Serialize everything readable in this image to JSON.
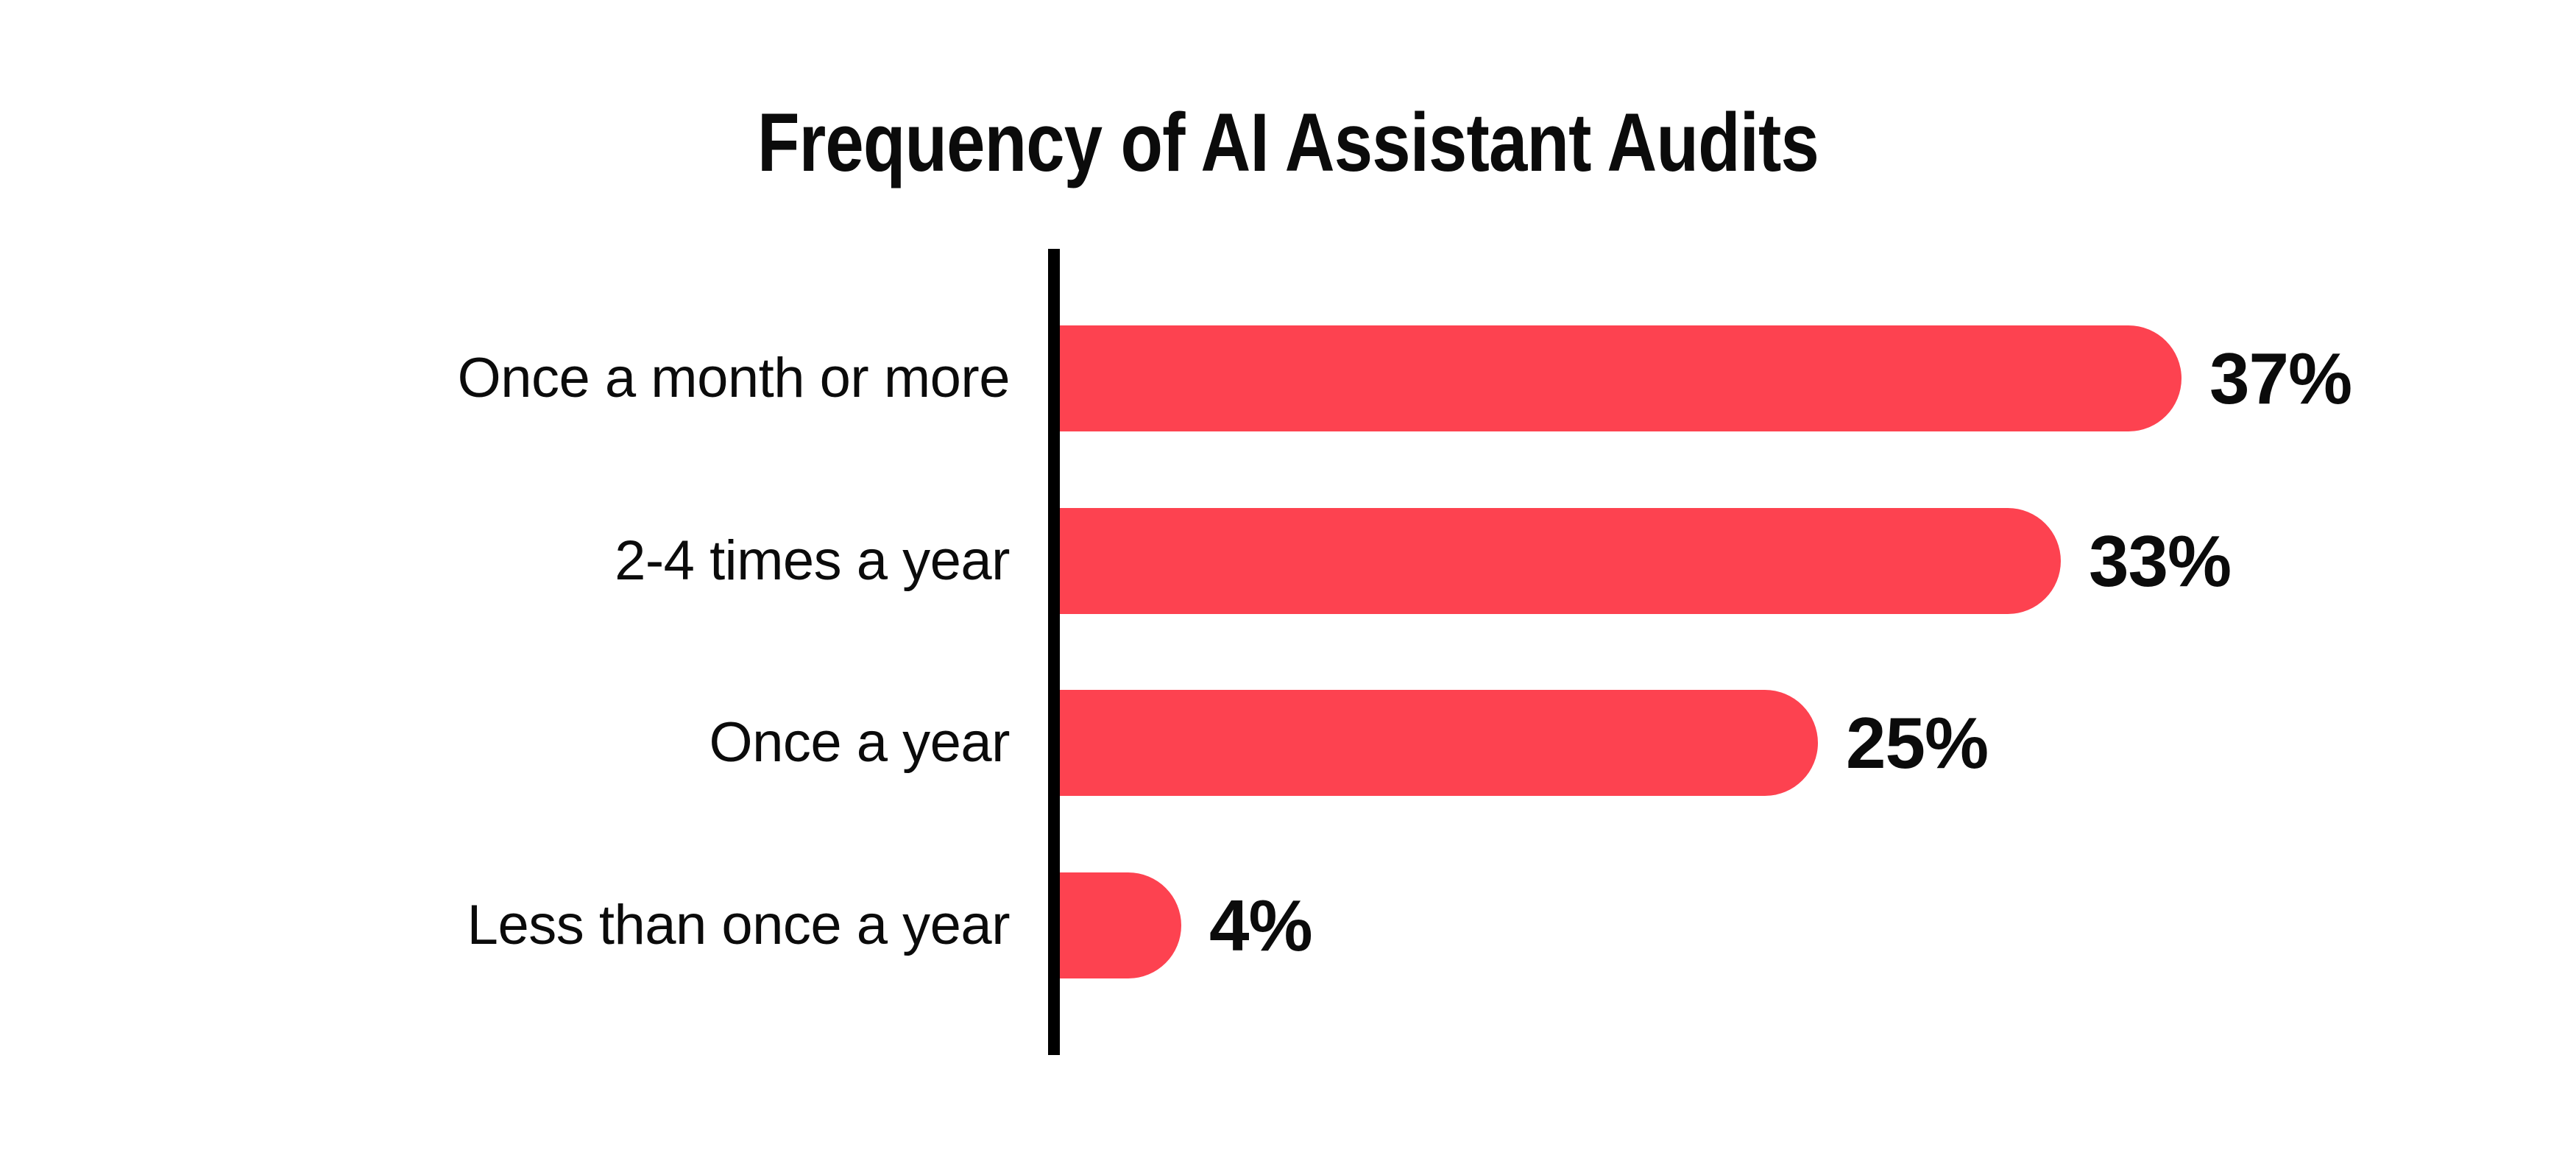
{
  "page": {
    "background_color": "#FFFFFF",
    "text_color": "#0B0B0B"
  },
  "chart_data": {
    "type": "bar",
    "orientation": "horizontal",
    "title": "Frequency of AI Assistant Audits",
    "categories": [
      "Once a month or more",
      "2-4 times a year",
      "Once a year",
      "Less than once a year"
    ],
    "values": [
      37,
      33,
      25,
      4
    ],
    "value_labels": [
      "37%",
      "33%",
      "25%",
      "4%"
    ],
    "value_suffix": "%",
    "xlabel": "",
    "ylabel": "",
    "xlim": [
      0,
      40
    ],
    "grid": false,
    "legend": false,
    "bar_color": "#FD4250",
    "axis_line_color": "#000000",
    "label_position": "right-of-bar"
  }
}
